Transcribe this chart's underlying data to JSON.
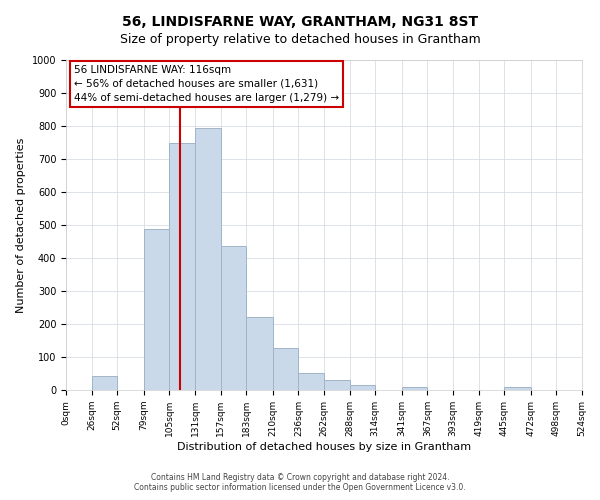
{
  "title": "56, LINDISFARNE WAY, GRANTHAM, NG31 8ST",
  "subtitle": "Size of property relative to detached houses in Grantham",
  "xlabel": "Distribution of detached houses by size in Grantham",
  "ylabel": "Number of detached properties",
  "bar_labels": [
    "0sqm",
    "26sqm",
    "52sqm",
    "79sqm",
    "105sqm",
    "131sqm",
    "157sqm",
    "183sqm",
    "210sqm",
    "236sqm",
    "262sqm",
    "288sqm",
    "314sqm",
    "341sqm",
    "367sqm",
    "393sqm",
    "419sqm",
    "445sqm",
    "472sqm",
    "498sqm",
    "524sqm"
  ],
  "bar_values": [
    0,
    43,
    0,
    488,
    748,
    795,
    437,
    220,
    126,
    52,
    30,
    15,
    0,
    9,
    0,
    0,
    0,
    8,
    0,
    0,
    0
  ],
  "bin_edges": [
    0,
    26,
    52,
    79,
    105,
    131,
    157,
    183,
    210,
    236,
    262,
    288,
    314,
    341,
    367,
    393,
    419,
    445,
    472,
    498,
    524
  ],
  "bar_color": "#c9d9ea",
  "bar_edge_color": "#a0b4c8",
  "vline_x": 116,
  "vline_color": "#cc0000",
  "ylim": [
    0,
    1000
  ],
  "yticks": [
    0,
    100,
    200,
    300,
    400,
    500,
    600,
    700,
    800,
    900,
    1000
  ],
  "annotation_lines": [
    "56 LINDISFARNE WAY: 116sqm",
    "← 56% of detached houses are smaller (1,631)",
    "44% of semi-detached houses are larger (1,279) →"
  ],
  "footer1": "Contains HM Land Registry data © Crown copyright and database right 2024.",
  "footer2": "Contains public sector information licensed under the Open Government Licence v3.0."
}
